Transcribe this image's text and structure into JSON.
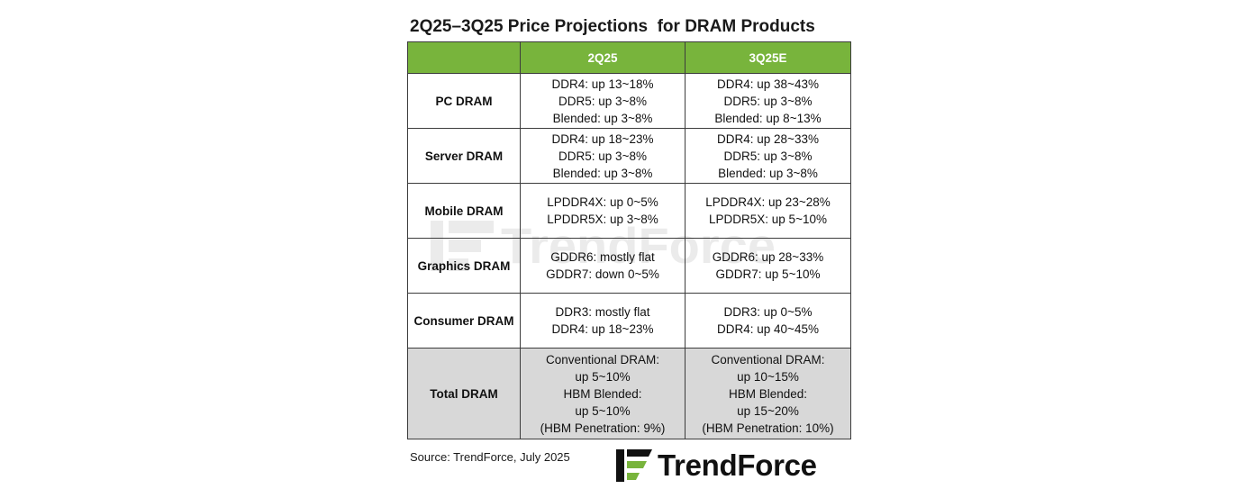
{
  "title": "2Q25–3Q25 Price Projections  for DRAM Products",
  "table": {
    "headers": [
      "",
      "2Q25",
      "3Q25E"
    ],
    "rows": [
      {
        "category": "PC DRAM",
        "q2": [
          "DDR4: up 13~18%",
          "DDR5: up 3~8%",
          "Blended: up 3~8%"
        ],
        "q3": [
          "DDR4: up 38~43%",
          "DDR5: up 3~8%",
          "Blended: up 8~13%"
        ]
      },
      {
        "category": "Server DRAM",
        "q2": [
          "DDR4: up 18~23%",
          "DDR5: up 3~8%",
          "Blended: up 3~8%"
        ],
        "q3": [
          "DDR4: up 28~33%",
          "DDR5: up 3~8%",
          "Blended: up 3~8%"
        ]
      },
      {
        "category": "Mobile DRAM",
        "q2": [
          "LPDDR4X: up 0~5%",
          "LPDDR5X: up 3~8%"
        ],
        "q3": [
          "LPDDR4X: up 23~28%",
          "LPDDR5X: up 5~10%"
        ]
      },
      {
        "category": "Graphics DRAM",
        "q2": [
          "GDDR6: mostly flat",
          "GDDR7: down 0~5%"
        ],
        "q3": [
          "GDDR6: up 28~33%",
          "GDDR7: up 5~10%"
        ]
      },
      {
        "category": "Consumer DRAM",
        "q2": [
          "DDR3: mostly flat",
          "DDR4: up 18~23%"
        ],
        "q3": [
          "DDR3: up 0~5%",
          "DDR4: up 40~45%"
        ]
      }
    ],
    "total": {
      "category": "Total DRAM",
      "q2": [
        "Conventional DRAM:",
        "up 5~10%",
        "HBM Blended:",
        "up 5~10%",
        "(HBM Penetration: 9%)"
      ],
      "q3": [
        "Conventional DRAM:",
        "up 10~15%",
        "HBM Blended:",
        "up 15~20%",
        "(HBM Penetration: 10%)"
      ]
    }
  },
  "source": "Source: TrendForce, July 2025",
  "logo": {
    "text": "TrendForce",
    "icon": "trendforce-logo-icon",
    "colors": {
      "green": "#78b43c",
      "dark": "#111111"
    }
  },
  "watermark": {
    "text": "TrendForce"
  },
  "colors": {
    "header_bg": "#78b43c",
    "total_bg": "#d8d8d8",
    "border": "#3c3c3c"
  }
}
